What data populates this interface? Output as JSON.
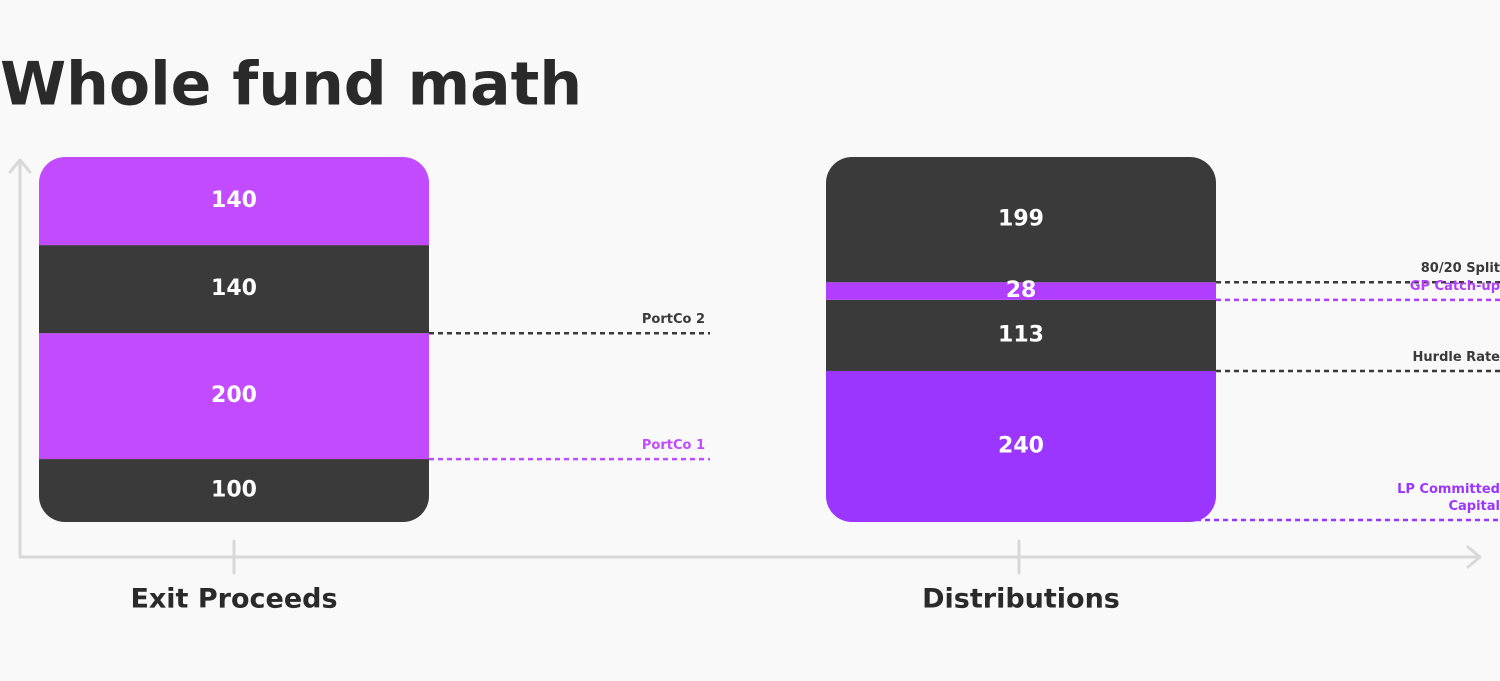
{
  "chart_data": {
    "type": "bar",
    "stacked": true,
    "title": "Whole fund math",
    "categories": [
      "Exit Proceeds",
      "Distributions"
    ],
    "bars": [
      {
        "segments": [
          {
            "value": 100,
            "color": "#3a3a3a"
          },
          {
            "value": 200,
            "color": "#c24bff",
            "label": "PortCo 1"
          },
          {
            "value": 140,
            "color": "#3a3a3a",
            "label": "PortCo 2"
          },
          {
            "value": 140,
            "color": "#c24bff"
          }
        ]
      },
      {
        "segments": [
          {
            "value": 240,
            "color": "#9a36ff",
            "label": "LP Committed Capital"
          },
          {
            "value": 113,
            "color": "#3a3a3a",
            "label": "Hurdle Rate"
          },
          {
            "value": 28,
            "color": "#b13dff",
            "label": "GP Catch-up"
          },
          {
            "value": 199,
            "color": "#3a3a3a",
            "label": "80/20 Split"
          }
        ]
      }
    ]
  }
}
